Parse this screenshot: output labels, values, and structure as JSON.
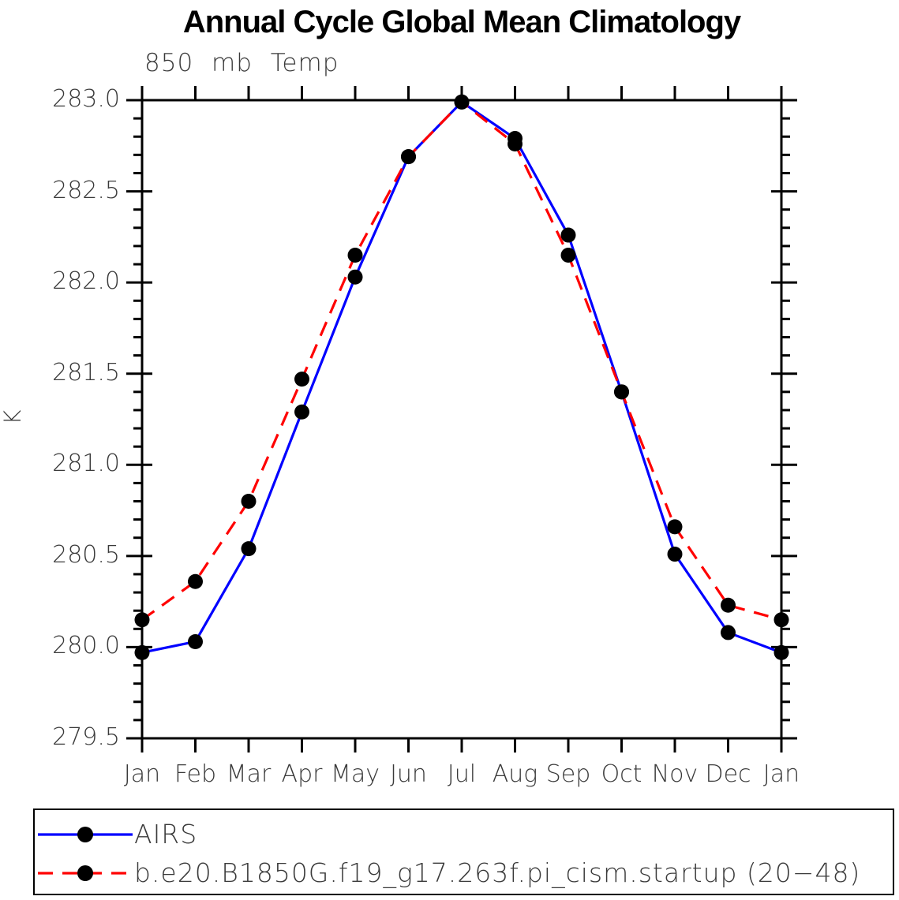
{
  "chart_data": {
    "type": "line",
    "title": "Annual Cycle Global Mean Climatology",
    "subtitle": "850 mb Temp",
    "ylabel": "K",
    "xlabel": "",
    "categories": [
      "Jan",
      "Feb",
      "Mar",
      "Apr",
      "May",
      "Jun",
      "Jul",
      "Aug",
      "Sep",
      "Oct",
      "Nov",
      "Dec",
      "Jan"
    ],
    "ylim": [
      279.5,
      283.0
    ],
    "y_tick_labels": [
      "283.0",
      "282.5",
      "282.0",
      "281.5",
      "281.0",
      "280.5",
      "280.0",
      "279.5"
    ],
    "y_major_step": 0.5,
    "y_minor_step": 0.1,
    "grid": false,
    "legend_position": "bottom",
    "axis_color": "#000000",
    "marker_color": "#000000",
    "series": [
      {
        "name": "AIRS",
        "color": "#0000ff",
        "style": "solid",
        "values": [
          279.97,
          280.03,
          280.54,
          281.29,
          282.03,
          282.69,
          282.99,
          282.79,
          282.26,
          281.4,
          280.51,
          280.08,
          279.97
        ]
      },
      {
        "name": "b.e20.B1850G.f19_g17.263f.pi_cism.startup (20−48)",
        "color": "#ff0000",
        "style": "dashed",
        "values": [
          280.15,
          280.36,
          280.8,
          281.47,
          282.15,
          282.69,
          282.99,
          282.76,
          282.15,
          281.4,
          280.66,
          280.23,
          280.15
        ]
      }
    ]
  }
}
